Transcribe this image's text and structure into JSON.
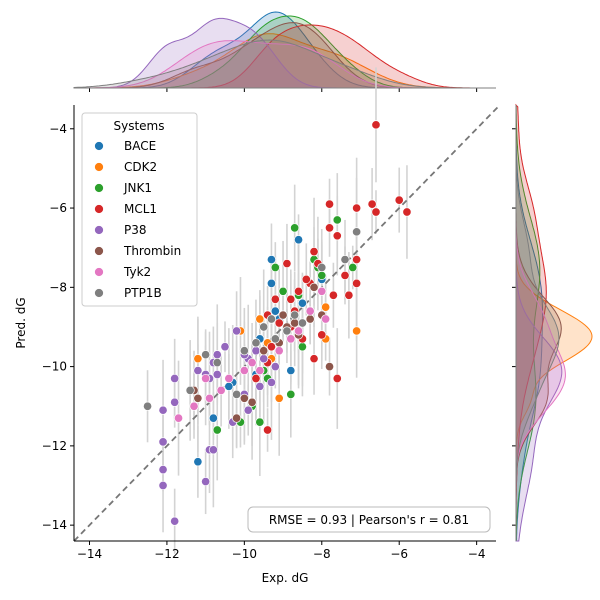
{
  "chart_data": {
    "type": "scatter",
    "xlabel": "Exp. dG",
    "ylabel": "Pred. dG",
    "xlim": [
      -14.4,
      -3.5
    ],
    "ylim": [
      -14.4,
      -3.4
    ],
    "x_ticks": [
      -14,
      -12,
      -10,
      -8,
      -6,
      -4
    ],
    "y_ticks": [
      -14,
      -12,
      -10,
      -8,
      -6,
      -4
    ],
    "x_tick_labels": [
      "−14",
      "−12",
      "−10",
      "−8",
      "−6",
      "−4"
    ],
    "y_tick_labels": [
      "−14",
      "−12",
      "−10",
      "−8",
      "−6",
      "−4"
    ],
    "grid": false,
    "identity_line": true,
    "legend": {
      "title": "Systems",
      "placement": "top-left"
    },
    "annotation": "RMSE = 0.93 | Pearson's r = 0.81",
    "marginal": {
      "top": "kde of Exp. dG per system",
      "right": "kde of Pred. dG per system"
    },
    "series": [
      {
        "name": "BACE",
        "color": "#1f77b4",
        "points": [
          [
            -9.3,
            -7.3
          ],
          [
            -8.0,
            -7.8
          ],
          [
            -8.6,
            -6.8
          ],
          [
            -9.2,
            -8.6
          ],
          [
            -9.1,
            -8.8
          ],
          [
            -8.5,
            -8.4
          ],
          [
            -9.6,
            -9.3
          ],
          [
            -10.3,
            -10.4
          ],
          [
            -10.4,
            -10.5
          ],
          [
            -9.7,
            -10.2
          ],
          [
            -10.8,
            -11.3
          ],
          [
            -11.2,
            -12.4
          ],
          [
            -8.8,
            -10.1
          ],
          [
            -9.3,
            -7.9
          ]
        ]
      },
      {
        "name": "CDK2",
        "color": "#ff7f0e",
        "points": [
          [
            -11.2,
            -9.8
          ],
          [
            -10.1,
            -9.1
          ],
          [
            -9.6,
            -8.8
          ],
          [
            -9.3,
            -9.8
          ],
          [
            -9.1,
            -10.8
          ],
          [
            -7.9,
            -8.5
          ],
          [
            -7.1,
            -9.1
          ],
          [
            -7.9,
            -9.3
          ],
          [
            -9.4,
            -9.4
          ]
        ]
      },
      {
        "name": "JNK1",
        "color": "#2ca02c",
        "points": [
          [
            -10.7,
            -11.6
          ],
          [
            -10.1,
            -11.4
          ],
          [
            -9.8,
            -11.0
          ],
          [
            -9.6,
            -11.4
          ],
          [
            -9.4,
            -10.3
          ],
          [
            -8.8,
            -10.7
          ],
          [
            -8.6,
            -8.2
          ],
          [
            -8.2,
            -7.3
          ],
          [
            -7.6,
            -6.3
          ],
          [
            -7.2,
            -7.5
          ],
          [
            -8.0,
            -7.7
          ],
          [
            -9.0,
            -8.1
          ],
          [
            -9.2,
            -7.5
          ],
          [
            -8.5,
            -9.5
          ],
          [
            -9.5,
            -10.1
          ],
          [
            -8.1,
            -7.5
          ],
          [
            -8.7,
            -6.5
          ]
        ]
      },
      {
        "name": "MCL1",
        "color": "#d62728",
        "points": [
          [
            -6.6,
            -3.9
          ],
          [
            -6.0,
            -5.8
          ],
          [
            -5.8,
            -6.1
          ],
          [
            -6.6,
            -6.1
          ],
          [
            -6.7,
            -5.9
          ],
          [
            -7.1,
            -6.0
          ],
          [
            -7.8,
            -5.9
          ],
          [
            -7.6,
            -6.7
          ],
          [
            -7.1,
            -7.3
          ],
          [
            -7.4,
            -7.7
          ],
          [
            -7.3,
            -8.2
          ],
          [
            -7.1,
            -7.9
          ],
          [
            -7.7,
            -8.2
          ],
          [
            -8.1,
            -7.4
          ],
          [
            -8.3,
            -7.9
          ],
          [
            -8.4,
            -7.8
          ],
          [
            -8.6,
            -8.1
          ],
          [
            -8.8,
            -8.3
          ],
          [
            -8.7,
            -8.6
          ],
          [
            -9.1,
            -8.9
          ],
          [
            -9.4,
            -8.7
          ],
          [
            -9.2,
            -8.3
          ],
          [
            -8.5,
            -9.3
          ],
          [
            -9.4,
            -9.9
          ],
          [
            -9.7,
            -10.3
          ],
          [
            -9.4,
            -11.6
          ],
          [
            -8.2,
            -9.8
          ],
          [
            -7.6,
            -10.3
          ],
          [
            -8.0,
            -9.2
          ],
          [
            -8.9,
            -7.4
          ],
          [
            -8.2,
            -7.1
          ],
          [
            -7.8,
            -6.5
          ],
          [
            -9.3,
            -9.5
          ],
          [
            -8.8,
            -9.0
          ]
        ]
      },
      {
        "name": "P38",
        "color": "#9467bd",
        "points": [
          [
            -11.8,
            -13.9
          ],
          [
            -12.1,
            -13.0
          ],
          [
            -12.1,
            -12.6
          ],
          [
            -12.1,
            -11.9
          ],
          [
            -12.1,
            -11.1
          ],
          [
            -11.8,
            -10.9
          ],
          [
            -11.8,
            -10.3
          ],
          [
            -11.2,
            -10.1
          ],
          [
            -11.0,
            -10.2
          ],
          [
            -10.9,
            -12.1
          ],
          [
            -10.8,
            -12.1
          ],
          [
            -11.0,
            -12.9
          ],
          [
            -10.9,
            -10.3
          ],
          [
            -10.7,
            -10.2
          ],
          [
            -10.8,
            -9.9
          ],
          [
            -10.7,
            -9.7
          ],
          [
            -10.5,
            -9.5
          ],
          [
            -10.2,
            -9.1
          ],
          [
            -9.9,
            -9.8
          ],
          [
            -9.7,
            -9.6
          ],
          [
            -9.5,
            -9.8
          ],
          [
            -9.3,
            -10.4
          ],
          [
            -9.6,
            -10.5
          ],
          [
            -10.0,
            -9.7
          ],
          [
            -9.2,
            -10.0
          ],
          [
            -10.3,
            -11.4
          ],
          [
            -10.0,
            -10.7
          ],
          [
            -9.9,
            -11.1
          ]
        ]
      },
      {
        "name": "Thrombin",
        "color": "#8c564b",
        "points": [
          [
            -11.3,
            -10.6
          ],
          [
            -11.2,
            -10.8
          ],
          [
            -10.2,
            -11.3
          ],
          [
            -10.0,
            -10.8
          ],
          [
            -9.8,
            -10.9
          ],
          [
            -9.5,
            -9.6
          ],
          [
            -9.1,
            -9.4
          ],
          [
            -9.0,
            -8.7
          ],
          [
            -8.9,
            -9.0
          ],
          [
            -8.6,
            -9.2
          ],
          [
            -8.3,
            -8.8
          ],
          [
            -8.2,
            -8.0
          ],
          [
            -8.0,
            -8.7
          ],
          [
            -7.8,
            -10.0
          ],
          [
            -8.7,
            -8.9
          ]
        ]
      },
      {
        "name": "Tyk2",
        "color": "#e377c2",
        "points": [
          [
            -11.7,
            -11.3
          ],
          [
            -11.3,
            -11.0
          ],
          [
            -11.0,
            -10.3
          ],
          [
            -10.9,
            -10.8
          ],
          [
            -10.6,
            -10.6
          ],
          [
            -10.4,
            -10.3
          ],
          [
            -10.0,
            -10.1
          ],
          [
            -9.8,
            -9.9
          ],
          [
            -9.6,
            -10.1
          ],
          [
            -9.1,
            -9.6
          ],
          [
            -8.8,
            -9.3
          ],
          [
            -8.6,
            -9.1
          ],
          [
            -8.3,
            -8.6
          ],
          [
            -8.0,
            -8.1
          ],
          [
            -7.9,
            -8.8
          ]
        ]
      },
      {
        "name": "PTP1B",
        "color": "#7f7f7f",
        "points": [
          [
            -12.5,
            -11.0
          ],
          [
            -11.4,
            -10.6
          ],
          [
            -11.0,
            -9.7
          ],
          [
            -10.7,
            -9.9
          ],
          [
            -10.2,
            -10.7
          ],
          [
            -10.0,
            -9.6
          ],
          [
            -9.7,
            -9.4
          ],
          [
            -9.5,
            -9.0
          ],
          [
            -9.3,
            -8.8
          ],
          [
            -9.2,
            -9.3
          ],
          [
            -8.9,
            -9.1
          ],
          [
            -8.7,
            -8.7
          ],
          [
            -8.5,
            -8.9
          ],
          [
            -8.0,
            -7.5
          ],
          [
            -7.4,
            -7.3
          ],
          [
            -7.1,
            -6.6
          ]
        ]
      }
    ]
  }
}
